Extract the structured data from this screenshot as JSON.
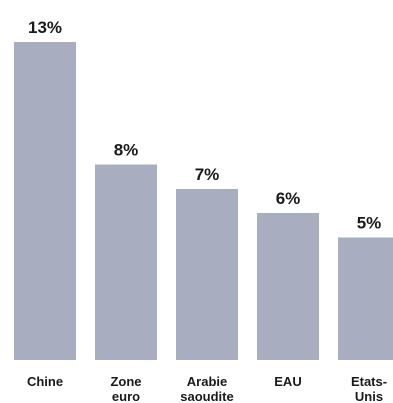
{
  "chart_data": {
    "type": "bar",
    "categories": [
      [
        "Chine"
      ],
      [
        "Zone",
        "euro"
      ],
      [
        "Arabie",
        "saoudite"
      ],
      [
        "EAU"
      ],
      [
        "Etats-",
        "Unis"
      ]
    ],
    "values": [
      13,
      8,
      7,
      6,
      5
    ],
    "value_labels": [
      "13%",
      "8%",
      "7%",
      "6%",
      "5%"
    ],
    "title": "",
    "xlabel": "",
    "ylabel": "",
    "ylim": [
      0,
      13
    ],
    "grid": false,
    "legend": "none",
    "bar_color": "#a9adc0",
    "text_color": "#1a1a1a"
  }
}
